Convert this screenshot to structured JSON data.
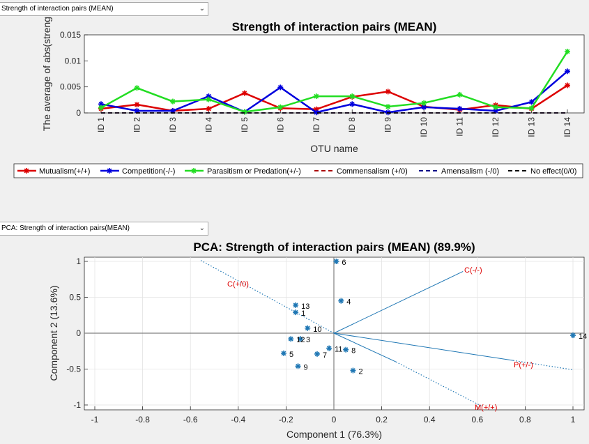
{
  "controls": {
    "top_select": "Strength of interaction pairs (MEAN)",
    "bottom_select": "PCA: Strength of interaction pairs(MEAN)"
  },
  "chart_data": [
    {
      "type": "line",
      "title": "Strength of interaction pairs (MEAN)",
      "xlabel": "OTU name",
      "ylabel": "The average of abs(streng",
      "categories": [
        "ID 1",
        "ID 2",
        "ID 3",
        "ID 4",
        "ID 5",
        "ID 6",
        "ID 7",
        "ID 8",
        "ID 9",
        "ID 10",
        "ID 11",
        "ID 12",
        "ID 13",
        "ID 14"
      ],
      "ylim": [
        0,
        0.015
      ],
      "yticks": [
        0,
        0.005,
        0.01,
        0.015
      ],
      "ytick_labels": [
        "0",
        "0.005",
        "0.01",
        "0.015"
      ],
      "legend_position": "bottom",
      "series": [
        {
          "name": "Mutualism(+/+)",
          "color": "#dd0000",
          "style": "solid",
          "marker": "star",
          "values": [
            0.0008,
            0.0016,
            0.0004,
            0.0008,
            0.0038,
            0.0009,
            0.0007,
            0.0031,
            0.0041,
            0.0012,
            0.0006,
            0.0015,
            0.0008,
            0.0053
          ]
        },
        {
          "name": "Competition(-/-)",
          "color": "#0000dd",
          "style": "solid",
          "marker": "star",
          "values": [
            0.0017,
            0.0004,
            0.0004,
            0.0032,
            0.0002,
            0.0049,
            0.0001,
            0.0017,
            0.0001,
            0.0011,
            0.0008,
            0.0004,
            0.0021,
            0.008
          ]
        },
        {
          "name": "Parasitism or Predation(+/-)",
          "color": "#22dd22",
          "style": "solid",
          "marker": "star",
          "values": [
            0.001,
            0.0048,
            0.0022,
            0.0026,
            0.0002,
            0.0011,
            0.0032,
            0.0032,
            0.0012,
            0.0019,
            0.0035,
            0.0011,
            0.0009,
            0.0118
          ]
        },
        {
          "name": "Commensalism (+/0)",
          "color": "#aa0000",
          "style": "dashed",
          "marker": "none",
          "values": [
            0,
            0,
            0,
            0,
            0,
            0,
            0,
            0,
            0,
            0,
            0,
            0,
            0,
            0
          ]
        },
        {
          "name": "Amensalism (-/0)",
          "color": "#000088",
          "style": "dashed",
          "marker": "none",
          "values": [
            0,
            0,
            0,
            0,
            0,
            0,
            0,
            0,
            0,
            0,
            0,
            0,
            0,
            0
          ]
        },
        {
          "name": "No effect(0/0)",
          "color": "#000000",
          "style": "dashed",
          "marker": "none",
          "values": [
            0,
            0,
            0,
            0,
            0,
            0,
            0,
            0,
            0,
            0,
            0,
            0,
            0,
            0
          ]
        }
      ]
    },
    {
      "type": "scatter",
      "title": "PCA: Strength of interaction pairs (MEAN) (89.9%)",
      "xlabel": "Component 1 (76.3%)",
      "ylabel": "Component 2 (13.6%)",
      "xlim": [
        -1.05,
        1.05
      ],
      "ylim": [
        -1.05,
        1.05
      ],
      "xticks": [
        -1,
        -0.8,
        -0.6,
        -0.4,
        -0.2,
        0,
        0.2,
        0.4,
        0.6,
        0.8,
        1
      ],
      "xtick_labels": [
        "-1",
        "-0.8",
        "-0.6",
        "-0.4",
        "-0.2",
        "0",
        "0.2",
        "0.4",
        "0.6",
        "0.8",
        "1"
      ],
      "yticks": [
        -1,
        -0.5,
        0,
        0.5,
        1
      ],
      "ytick_labels": [
        "-1",
        "-0.5",
        "0",
        "0.5",
        "1"
      ],
      "grid": true,
      "points": [
        {
          "label": "1",
          "x": -0.16,
          "y": 0.29
        },
        {
          "label": "2",
          "x": 0.08,
          "y": -0.52
        },
        {
          "label": "3",
          "x": -0.14,
          "y": -0.08
        },
        {
          "label": "4",
          "x": 0.03,
          "y": 0.45
        },
        {
          "label": "5",
          "x": -0.21,
          "y": -0.28
        },
        {
          "label": "6",
          "x": 0.01,
          "y": 1.0
        },
        {
          "label": "7",
          "x": -0.07,
          "y": -0.29
        },
        {
          "label": "8",
          "x": 0.05,
          "y": -0.23
        },
        {
          "label": "9",
          "x": -0.15,
          "y": -0.46
        },
        {
          "label": "10",
          "x": -0.11,
          "y": 0.07
        },
        {
          "label": "11",
          "x": -0.02,
          "y": -0.21
        },
        {
          "label": "12",
          "x": -0.18,
          "y": -0.08
        },
        {
          "label": "13",
          "x": -0.16,
          "y": 0.39
        },
        {
          "label": "14",
          "x": 1.0,
          "y": -0.03
        }
      ],
      "vectors": [
        {
          "label": "C(-/-)",
          "x": 0.54,
          "y": 0.86
        },
        {
          "label": "P(+/-)",
          "x": 0.25,
          "y": -0.4
        },
        {
          "label": "M(+/+)",
          "x": 0.25,
          "y": -0.4
        }
      ],
      "label_color": "#dd0000",
      "point_color": "#1f77b4"
    }
  ]
}
